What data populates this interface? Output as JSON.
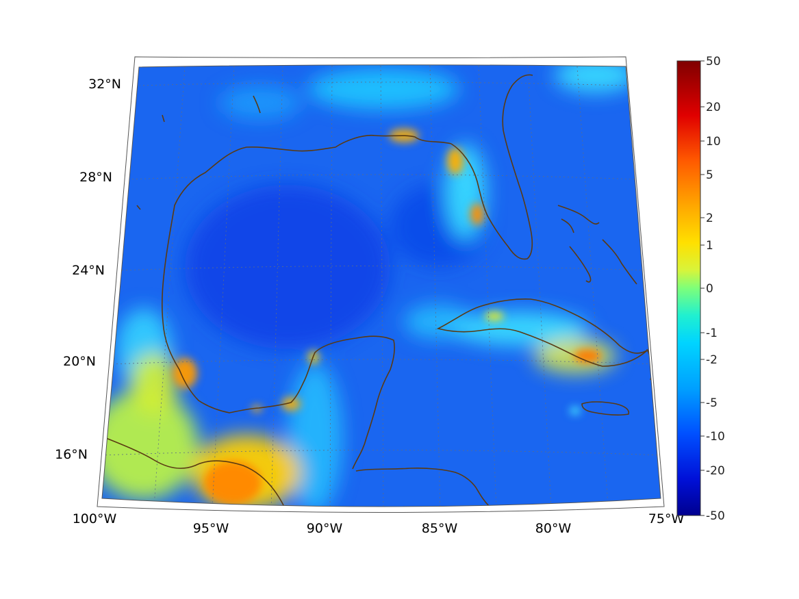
{
  "map": {
    "projection": "conic",
    "region": "Gulf of Mexico and Caribbean",
    "lon_range": [
      -100,
      -75
    ],
    "lat_range": [
      14,
      32.5
    ],
    "grid": true,
    "coastline_color": "#5a3a12",
    "lon_ticks": [
      {
        "value": -100,
        "label": "100°W"
      },
      {
        "value": -95,
        "label": "95°W"
      },
      {
        "value": -90,
        "label": "90°W"
      },
      {
        "value": -85,
        "label": "85°W"
      },
      {
        "value": -80,
        "label": "80°W"
      },
      {
        "value": -75,
        "label": "75°W"
      }
    ],
    "lat_ticks": [
      {
        "value": 32,
        "label": "32°N"
      },
      {
        "value": 28,
        "label": "28°N"
      },
      {
        "value": 24,
        "label": "24°N"
      },
      {
        "value": 20,
        "label": "20°N"
      },
      {
        "value": 16,
        "label": "16°N"
      }
    ],
    "field_background": "#1a66f0"
  },
  "colorbar": {
    "colormap": "jet",
    "position": "right",
    "scale": "nonlinear",
    "labels": [
      "50",
      "20",
      "10",
      "5",
      "2",
      "1",
      "0",
      "-1",
      "-2",
      "-5",
      "-10",
      "-20",
      "-50"
    ]
  }
}
